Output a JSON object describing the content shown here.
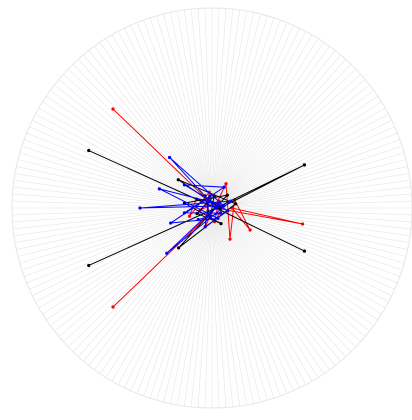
{
  "chart_data": {
    "type": "line",
    "coordinate_system": "polar",
    "title": "",
    "xlabel": "",
    "ylabel": "",
    "grid": true,
    "legend": "none",
    "r_range": [
      0,
      1
    ],
    "colors": {
      "grid": "#e6e6e6",
      "series_black": "#000000",
      "series_red": "#ff0000",
      "series_blue": "#0000ff"
    },
    "series": [
      {
        "color": "#ff0000",
        "points": [
          [
            0,
            0.02
          ],
          [
            135,
            0.7
          ],
          [
            0,
            0.02
          ],
          [
            225,
            0.7
          ],
          [
            0,
            0.02
          ],
          [
            350,
            0.46
          ],
          [
            0,
            0.1
          ],
          [
            330,
            0.22
          ],
          [
            20,
            0.12
          ],
          [
            300,
            0.18
          ],
          [
            60,
            0.14
          ],
          [
            250,
            0.1
          ],
          [
            100,
            0.08
          ],
          [
            200,
            0.12
          ],
          [
            150,
            0.09
          ],
          [
            10,
            0.06
          ],
          [
            280,
            0.07
          ],
          [
            45,
            0.05
          ],
          [
            190,
            0.06
          ],
          [
            120,
            0.04
          ]
        ]
      },
      {
        "color": "#000000",
        "points": [
          [
            0,
            0.02
          ],
          [
            155,
            0.68
          ],
          [
            0,
            0.02
          ],
          [
            205,
            0.68
          ],
          [
            0,
            0.02
          ],
          [
            335,
            0.51
          ],
          [
            0,
            0.02
          ],
          [
            25,
            0.51
          ],
          [
            0,
            0.04
          ],
          [
            140,
            0.22
          ],
          [
            10,
            0.12
          ],
          [
            230,
            0.26
          ],
          [
            40,
            0.1
          ],
          [
            170,
            0.14
          ],
          [
            300,
            0.09
          ],
          [
            200,
            0.08
          ],
          [
            80,
            0.06
          ],
          [
            260,
            0.05
          ],
          [
            120,
            0.07
          ]
        ]
      },
      {
        "color": "#0000ff",
        "points": [
          [
            0,
            0.02
          ],
          [
            130,
            0.33
          ],
          [
            10,
            0.06
          ],
          [
            180,
            0.36
          ],
          [
            20,
            0.1
          ],
          [
            225,
            0.32
          ],
          [
            30,
            0.04
          ],
          [
            160,
            0.28
          ],
          [
            300,
            0.06
          ],
          [
            200,
            0.22
          ],
          [
            60,
            0.12
          ],
          [
            140,
            0.18
          ],
          [
            350,
            0.08
          ],
          [
            250,
            0.1
          ],
          [
            100,
            0.06
          ],
          [
            190,
            0.14
          ],
          [
            330,
            0.05
          ],
          [
            220,
            0.09
          ]
        ]
      }
    ]
  }
}
